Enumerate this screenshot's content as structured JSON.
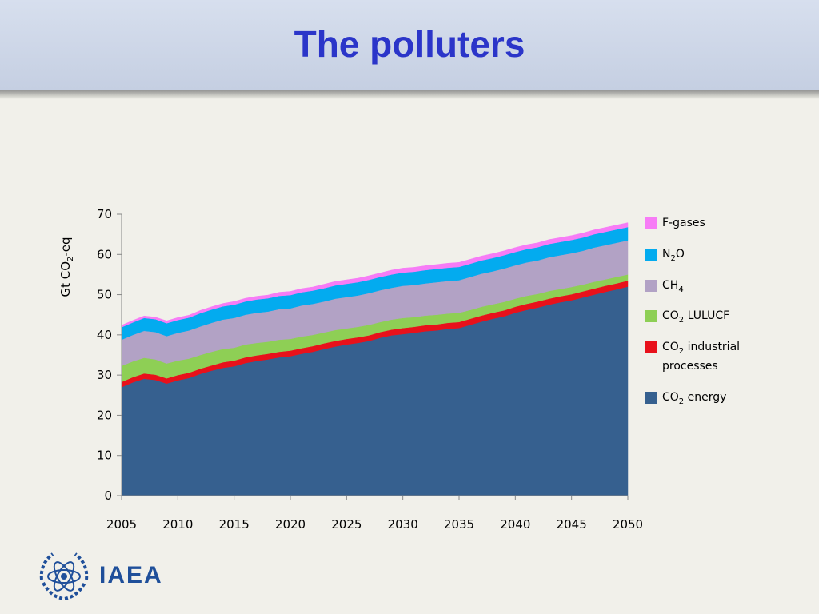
{
  "slide": {
    "title": "The polluters",
    "logo_text": "IAEA"
  },
  "chart_data": {
    "type": "area",
    "stacked": true,
    "ylabel_parts": [
      "Gt CO",
      "2",
      "-eq"
    ],
    "xlabel": "",
    "xlim": [
      2005,
      2050
    ],
    "ylim": [
      0,
      70
    ],
    "x_ticks": [
      2005,
      2010,
      2015,
      2020,
      2025,
      2030,
      2035,
      2040,
      2045,
      2050
    ],
    "y_ticks": [
      0,
      10,
      20,
      30,
      40,
      50,
      60,
      70
    ],
    "grid": false,
    "legend_position": "right",
    "x": [
      2005,
      2006,
      2007,
      2008,
      2009,
      2010,
      2011,
      2012,
      2013,
      2014,
      2015,
      2016,
      2017,
      2018,
      2019,
      2020,
      2021,
      2022,
      2023,
      2024,
      2025,
      2026,
      2027,
      2028,
      2029,
      2030,
      2031,
      2032,
      2033,
      2034,
      2035,
      2036,
      2037,
      2038,
      2039,
      2040,
      2041,
      2042,
      2043,
      2044,
      2045,
      2046,
      2047,
      2048,
      2049,
      2050
    ],
    "series": [
      {
        "name_parts": [
          "CO",
          "2",
          " energy"
        ],
        "color": "#36608f",
        "values": [
          27.0,
          28.2,
          29.1,
          28.8,
          27.9,
          28.7,
          29.3,
          30.3,
          31.1,
          31.8,
          32.2,
          33.0,
          33.5,
          33.9,
          34.4,
          34.7,
          35.3,
          35.8,
          36.5,
          37.1,
          37.6,
          38.0,
          38.5,
          39.3,
          39.9,
          40.2,
          40.5,
          40.9,
          41.1,
          41.5,
          41.7,
          42.5,
          43.3,
          44.0,
          44.6,
          45.5,
          46.2,
          46.8,
          47.5,
          48.1,
          48.6,
          49.3,
          50.0,
          50.7,
          51.3,
          52.0
        ]
      },
      {
        "name_parts": [
          "CO",
          "2",
          " industrial processes"
        ],
        "color": "#e8111b",
        "values": [
          1.3,
          1.3,
          1.3,
          1.3,
          1.3,
          1.3,
          1.3,
          1.3,
          1.3,
          1.4,
          1.4,
          1.4,
          1.4,
          1.4,
          1.4,
          1.4,
          1.4,
          1.4,
          1.4,
          1.4,
          1.4,
          1.4,
          1.4,
          1.4,
          1.4,
          1.5,
          1.5,
          1.5,
          1.5,
          1.5,
          1.5,
          1.5,
          1.5,
          1.5,
          1.5,
          1.5,
          1.5,
          1.5,
          1.5,
          1.5,
          1.5,
          1.5,
          1.5,
          1.5,
          1.5,
          1.5
        ]
      },
      {
        "name_parts": [
          "CO",
          "2",
          " LULUCF"
        ],
        "color": "#8ecf55",
        "values": [
          4.0,
          3.9,
          3.9,
          3.8,
          3.7,
          3.6,
          3.5,
          3.4,
          3.4,
          3.3,
          3.2,
          3.2,
          3.1,
          3.0,
          3.0,
          2.9,
          2.9,
          2.8,
          2.7,
          2.7,
          2.6,
          2.6,
          2.6,
          2.5,
          2.5,
          2.5,
          2.4,
          2.4,
          2.4,
          2.3,
          2.3,
          2.2,
          2.2,
          2.1,
          2.1,
          2.0,
          2.0,
          1.9,
          1.9,
          1.8,
          1.8,
          1.7,
          1.7,
          1.6,
          1.6,
          1.5
        ]
      },
      {
        "name_parts": [
          "CH",
          "4",
          ""
        ],
        "color": "#b2a2c5",
        "values": [
          6.5,
          6.6,
          6.7,
          6.8,
          6.8,
          6.9,
          7.0,
          7.1,
          7.2,
          7.3,
          7.4,
          7.4,
          7.5,
          7.5,
          7.6,
          7.6,
          7.7,
          7.7,
          7.7,
          7.8,
          7.8,
          7.8,
          7.9,
          7.9,
          7.9,
          8.0,
          8.0,
          8.0,
          8.1,
          8.1,
          8.1,
          8.2,
          8.2,
          8.2,
          8.3,
          8.3,
          8.3,
          8.3,
          8.4,
          8.4,
          8.4,
          8.4,
          8.5,
          8.5,
          8.5,
          8.5
        ]
      },
      {
        "name_parts": [
          "N",
          "2",
          "O"
        ],
        "color": "#03abef",
        "values": [
          3.1,
          3.1,
          3.2,
          3.2,
          3.2,
          3.2,
          3.2,
          3.3,
          3.3,
          3.3,
          3.3,
          3.3,
          3.3,
          3.3,
          3.3,
          3.3,
          3.3,
          3.3,
          3.3,
          3.3,
          3.3,
          3.3,
          3.3,
          3.3,
          3.3,
          3.3,
          3.3,
          3.3,
          3.3,
          3.3,
          3.3,
          3.3,
          3.3,
          3.3,
          3.3,
          3.3,
          3.3,
          3.3,
          3.3,
          3.3,
          3.3,
          3.3,
          3.3,
          3.3,
          3.3,
          3.3
        ]
      },
      {
        "name_parts": [
          "F-gases",
          "",
          ""
        ],
        "color": "#f77cf6",
        "values": [
          0.5,
          0.5,
          0.5,
          0.5,
          0.6,
          0.6,
          0.6,
          0.7,
          0.7,
          0.7,
          0.8,
          0.8,
          0.8,
          0.8,
          0.9,
          0.9,
          0.9,
          0.9,
          1.0,
          1.0,
          1.0,
          1.0,
          1.0,
          1.0,
          1.1,
          1.1,
          1.1,
          1.1,
          1.1,
          1.1,
          1.1,
          1.1,
          1.1,
          1.1,
          1.1,
          1.1,
          1.1,
          1.1,
          1.1,
          1.1,
          1.1,
          1.1,
          1.1,
          1.1,
          1.1,
          1.1
        ]
      }
    ],
    "legend_order": [
      5,
      4,
      3,
      2,
      1,
      0
    ]
  }
}
